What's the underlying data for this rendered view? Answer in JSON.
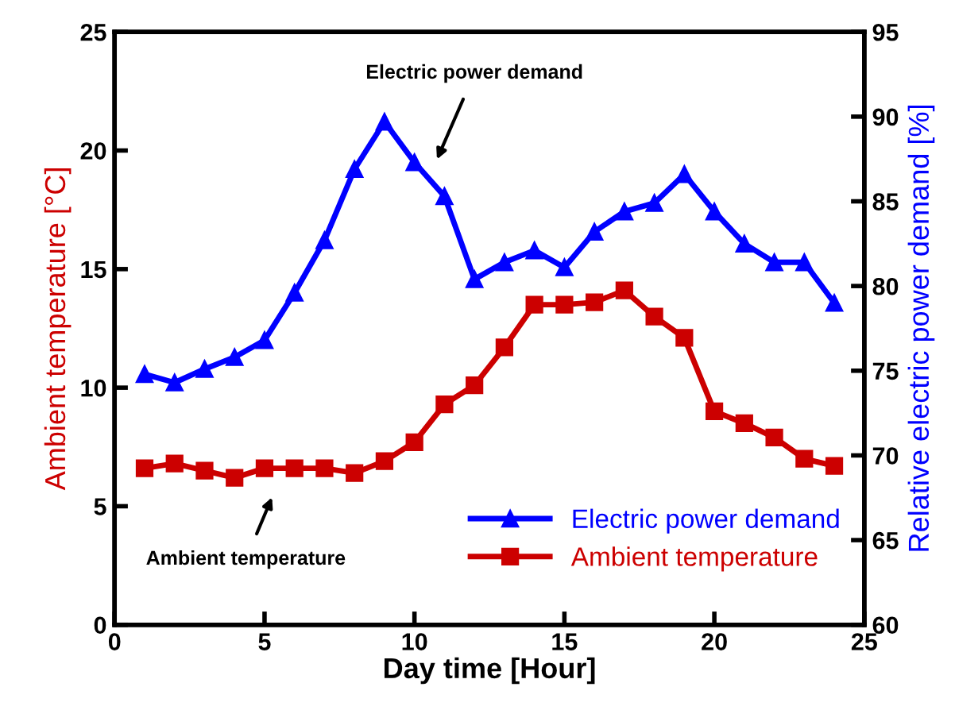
{
  "chart_data": {
    "type": "line",
    "xlabel": "Day time [Hour]",
    "ylabel": "Ambient temperature [°C]",
    "y2label": "Relative electric power demand [%]",
    "x": [
      1,
      2,
      3,
      4,
      5,
      6,
      7,
      8,
      9,
      10,
      11,
      12,
      13,
      14,
      15,
      16,
      17,
      18,
      19,
      20,
      21,
      22,
      23,
      24
    ],
    "series": [
      {
        "name": "Electric power demand",
        "color": "#0000ff",
        "marker": "triangle",
        "axis": "y2",
        "values": [
          74.8,
          74.3,
          75.1,
          75.8,
          76.8,
          79.6,
          82.7,
          86.9,
          89.7,
          87.3,
          85.3,
          80.4,
          81.4,
          82.1,
          81.1,
          83.2,
          84.4,
          84.9,
          86.6,
          84.4,
          82.5,
          81.4,
          81.4,
          79.0
        ]
      },
      {
        "name": "Ambient temperature",
        "color": "#cc0000",
        "marker": "square",
        "values": [
          6.6,
          6.8,
          6.5,
          6.2,
          6.6,
          6.6,
          6.6,
          6.4,
          6.9,
          7.7,
          9.3,
          10.1,
          11.7,
          13.5,
          13.5,
          13.6,
          14.1,
          13.0,
          12.1,
          9.0,
          8.5,
          7.9,
          7.0,
          6.7
        ]
      }
    ],
    "annotations": [
      "Electric power demand",
      "Ambient temperature"
    ],
    "xlim": [
      0,
      25
    ],
    "xticks": [
      0,
      5,
      10,
      15,
      20,
      25
    ],
    "ylim": [
      0,
      25
    ],
    "yticks": [
      0,
      5,
      10,
      15,
      20,
      25
    ],
    "y2lim": [
      60,
      95
    ],
    "y2ticks": [
      60,
      65,
      70,
      75,
      80,
      85,
      90,
      95
    ],
    "grid": false,
    "legend": "bottom right",
    "line_style": "solid"
  }
}
